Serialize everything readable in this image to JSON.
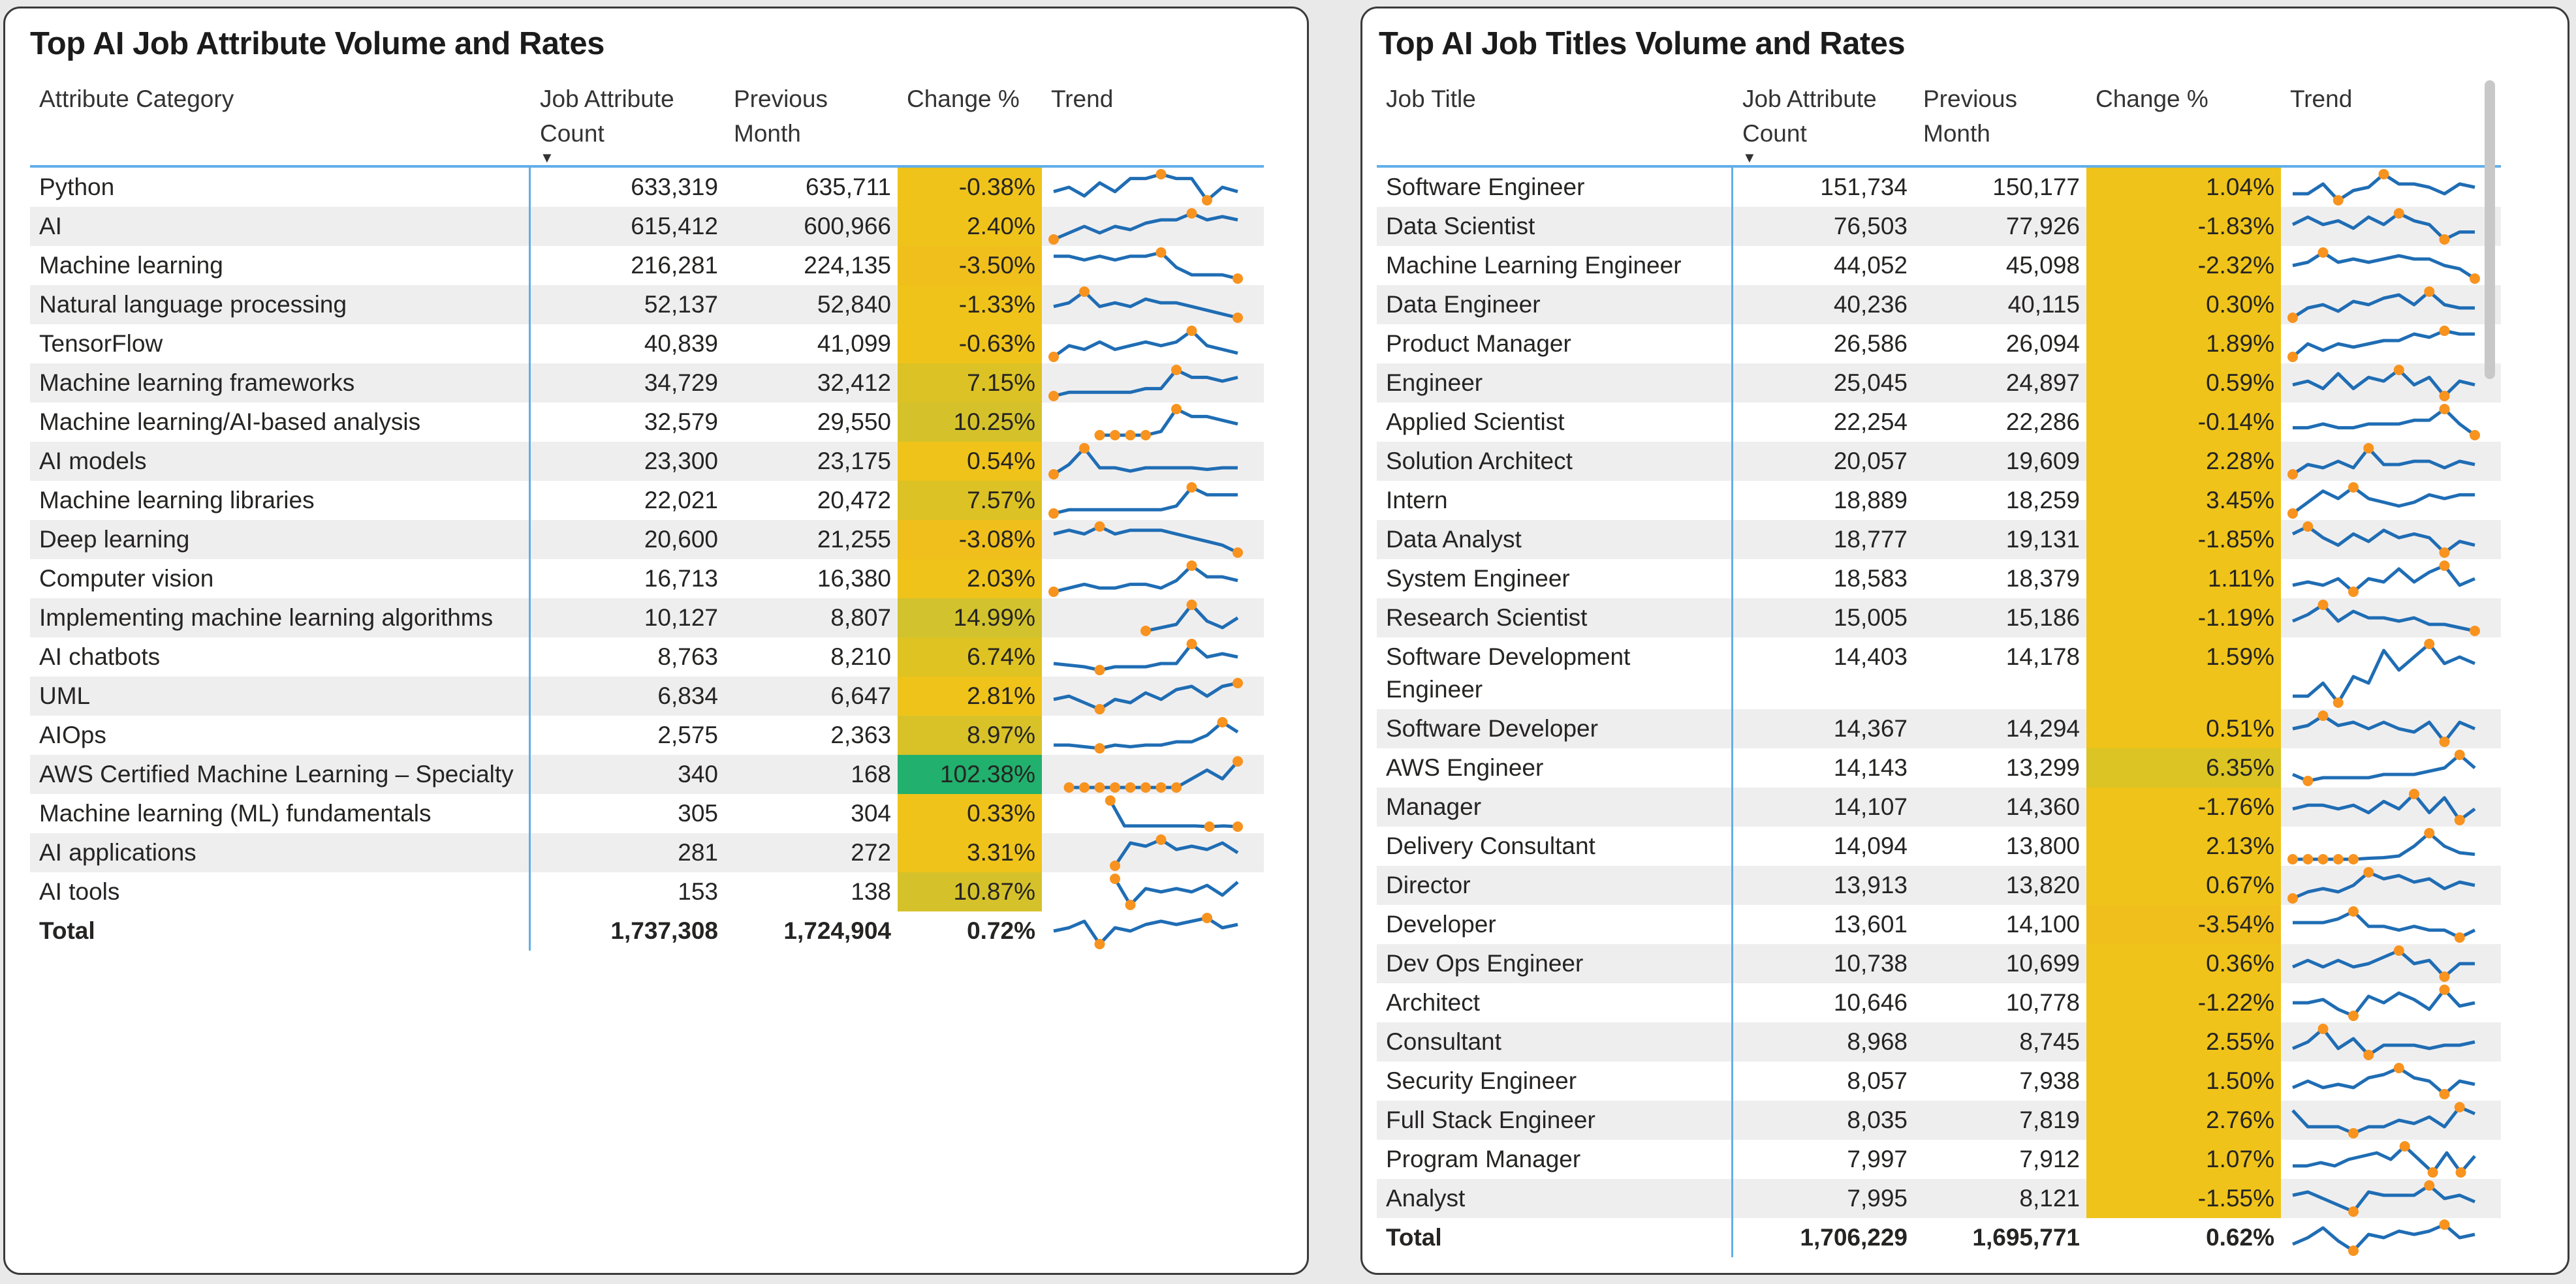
{
  "colors": {
    "line": "#1f6db4",
    "marker": "#f7931e",
    "header_rule": "#62aee9",
    "green": "#21b06d",
    "yellow": "#efc31a",
    "olive": "#d5c22b"
  },
  "left": {
    "title": "Top AI Job Attribute Volume and Rates",
    "headers": {
      "name": "Attribute Category",
      "count_1": "Job Attribute",
      "count_2": "Count",
      "sort": "▼",
      "prev_1": "Previous",
      "prev_2": "Month",
      "change": "Change %",
      "trend": "Trend"
    },
    "rows": [
      {
        "name": "Python",
        "count": "633,319",
        "prev": "635,711",
        "change": "-0.38%",
        "color": "#efc31a",
        "trend": [
          5,
          6,
          4,
          7,
          5,
          8,
          8,
          9,
          8,
          8,
          3,
          6,
          5
        ]
      },
      {
        "name": "AI",
        "count": "615,412",
        "prev": "600,966",
        "change": "2.40%",
        "color": "#efc31a",
        "trend": [
          1,
          3,
          5,
          3,
          5,
          4,
          6,
          7,
          7,
          9,
          7,
          8,
          7
        ]
      },
      {
        "name": "Machine learning",
        "count": "216,281",
        "prev": "224,135",
        "change": "-3.50%",
        "color": "#f0bf1b",
        "trend": [
          8,
          8,
          7,
          8,
          7,
          8,
          8,
          9,
          5,
          3,
          3,
          3,
          2
        ]
      },
      {
        "name": "Natural language processing",
        "count": "52,137",
        "prev": "52,840",
        "change": "-1.33%",
        "color": "#efc31a",
        "trend": [
          5,
          6,
          9,
          5,
          6,
          5,
          7,
          6,
          6,
          5,
          4,
          3,
          2
        ]
      },
      {
        "name": "TensorFlow",
        "count": "40,839",
        "prev": "41,099",
        "change": "-0.63%",
        "color": "#efc31a",
        "trend": [
          2,
          5,
          4,
          6,
          4,
          5,
          6,
          5,
          6,
          9,
          5,
          4,
          3
        ]
      },
      {
        "name": "Machine learning frameworks",
        "count": "34,729",
        "prev": "32,412",
        "change": "7.15%",
        "color": "#dcc224",
        "trend": [
          1,
          2,
          2,
          2,
          2,
          2,
          3,
          3,
          8,
          6,
          6,
          5,
          6
        ]
      },
      {
        "name": "Machine learning/AI-based analysis",
        "count": "32,579",
        "prev": "29,550",
        "change": "10.25%",
        "color": "#d5c22b",
        "trend": [
          null,
          null,
          null,
          1,
          1,
          1,
          1,
          2,
          8,
          6,
          6,
          5,
          4
        ]
      },
      {
        "name": "AI models",
        "count": "23,300",
        "prev": "23,175",
        "change": "0.54%",
        "color": "#efc31a",
        "trend": [
          1,
          4,
          9,
          3,
          3,
          2,
          3,
          3,
          3,
          3,
          2.5,
          3,
          3
        ]
      },
      {
        "name": "Machine learning libraries",
        "count": "22,021",
        "prev": "20,472",
        "change": "7.57%",
        "color": "#dcc224",
        "trend": [
          1,
          2,
          2,
          2,
          2,
          2,
          2,
          2,
          3,
          8,
          6,
          6,
          6
        ]
      },
      {
        "name": "Deep learning",
        "count": "20,600",
        "prev": "21,255",
        "change": "-3.08%",
        "color": "#f0bf1b",
        "trend": [
          7,
          8,
          7,
          9,
          7,
          8,
          8,
          8,
          7,
          6,
          5,
          4,
          2
        ]
      },
      {
        "name": "Computer vision",
        "count": "16,713",
        "prev": "16,380",
        "change": "2.03%",
        "color": "#efc31a",
        "trend": [
          2,
          3,
          4,
          3,
          3,
          4,
          4,
          3,
          5,
          9,
          6,
          6,
          5
        ]
      },
      {
        "name": "Implementing machine learning algorithms",
        "count": "10,127",
        "prev": "8,807",
        "change": "14.99%",
        "color": "#d2c22e",
        "trend": [
          null,
          null,
          null,
          null,
          null,
          null,
          1,
          2,
          3,
          9,
          4,
          2,
          5
        ]
      },
      {
        "name": "AI chatbots",
        "count": "8,763",
        "prev": "8,210",
        "change": "6.74%",
        "color": "#dec322",
        "trend": [
          3,
          2.5,
          2,
          1,
          2,
          2,
          2,
          3,
          3,
          9,
          5,
          6,
          5
        ]
      },
      {
        "name": "UML",
        "count": "6,834",
        "prev": "6,647",
        "change": "2.81%",
        "color": "#efc31a",
        "trend": [
          4,
          5,
          3,
          1,
          4,
          3,
          6,
          4,
          7,
          8,
          5,
          8,
          9
        ]
      },
      {
        "name": "AIOps",
        "count": "2,575",
        "prev": "2,363",
        "change": "8.97%",
        "color": "#d8c228",
        "trend": [
          2,
          2,
          1.5,
          1,
          2,
          1.5,
          2,
          2,
          3,
          3,
          5,
          9,
          6
        ]
      },
      {
        "name": "AWS Certified Machine Learning – Specialty",
        "count": "340",
        "prev": "168",
        "change": "102.38%",
        "color": "#21b06d",
        "trend": [
          null,
          1,
          1,
          1,
          1,
          1,
          1,
          1,
          1,
          4,
          7,
          4,
          10
        ]
      },
      {
        "name": "Machine learning (ML) fundamentals",
        "count": "305",
        "prev": "304",
        "change": "0.33%",
        "color": "#efc31a",
        "trend": [
          null,
          null,
          null,
          null,
          10,
          3,
          3,
          3,
          3,
          3,
          3,
          2.8,
          3,
          2.8
        ]
      },
      {
        "name": "AI applications",
        "count": "281",
        "prev": "272",
        "change": "3.31%",
        "color": "#efc31a",
        "trend": [
          null,
          null,
          null,
          null,
          1,
          8,
          7,
          9,
          6,
          7,
          6,
          8,
          5
        ]
      },
      {
        "name": "AI tools",
        "count": "153",
        "prev": "138",
        "change": "10.87%",
        "color": "#d5c22b",
        "trend": [
          null,
          null,
          null,
          null,
          9,
          1,
          6,
          5,
          6,
          5,
          7,
          4,
          8
        ]
      }
    ],
    "total": {
      "name": "Total",
      "count": "1,737,308",
      "prev": "1,724,904",
      "change": "0.72%",
      "trend": [
        5,
        6,
        8,
        1,
        6,
        5,
        7,
        8,
        7,
        8,
        9,
        6,
        7
      ]
    }
  },
  "right": {
    "title": "Top AI Job Titles Volume and Rates",
    "headers": {
      "name": "Job Title",
      "count_1": "Job Attribute",
      "count_2": "Count",
      "sort": "▼",
      "prev_1": "Previous",
      "prev_2": "Month",
      "change": "Change %",
      "trend": "Trend"
    },
    "rows": [
      {
        "name": "Software Engineer",
        "count": "151,734",
        "prev": "150,177",
        "change": "1.04%",
        "color": "#efc31a",
        "trend": [
          3,
          3,
          6,
          1,
          4,
          5,
          9,
          6,
          6,
          5,
          3,
          6,
          5
        ]
      },
      {
        "name": "Data Scientist",
        "count": "76,503",
        "prev": "77,926",
        "change": "-1.83%",
        "color": "#efc31a",
        "trend": [
          5,
          7,
          5,
          6,
          4,
          7,
          5,
          8,
          6,
          5,
          1,
          3,
          3
        ]
      },
      {
        "name": "Machine Learning Engineer",
        "count": "44,052",
        "prev": "45,098",
        "change": "-2.32%",
        "color": "#efc31a",
        "trend": [
          5,
          6,
          9,
          6,
          7,
          6,
          7,
          8,
          7,
          7,
          5,
          4,
          1
        ]
      },
      {
        "name": "Data Engineer",
        "count": "40,236",
        "prev": "40,115",
        "change": "0.30%",
        "color": "#efc31a",
        "trend": [
          1,
          4,
          5,
          3,
          6,
          5,
          7,
          8,
          5,
          9,
          5,
          4,
          4
        ]
      },
      {
        "name": "Product Manager",
        "count": "26,586",
        "prev": "26,094",
        "change": "1.89%",
        "color": "#efc31a",
        "trend": [
          1,
          5,
          3,
          5,
          4,
          5,
          6,
          6,
          8,
          7,
          9,
          8,
          8
        ]
      },
      {
        "name": "Engineer",
        "count": "25,045",
        "prev": "24,897",
        "change": "0.59%",
        "color": "#efc31a",
        "trend": [
          5,
          6,
          4,
          8,
          4,
          7,
          6,
          9,
          5,
          7,
          2,
          6,
          5
        ]
      },
      {
        "name": "Applied Scientist",
        "count": "22,254",
        "prev": "22,286",
        "change": "-0.14%",
        "color": "#efc31a",
        "trend": [
          4,
          4,
          5,
          4,
          4,
          5,
          5,
          5,
          6,
          6,
          9,
          5,
          2
        ]
      },
      {
        "name": "Solution Architect",
        "count": "20,057",
        "prev": "19,609",
        "change": "2.28%",
        "color": "#efc31a",
        "trend": [
          1,
          4,
          3,
          5,
          3,
          9,
          4,
          4,
          5,
          5,
          3,
          5,
          4
        ]
      },
      {
        "name": "Intern",
        "count": "18,889",
        "prev": "18,259",
        "change": "3.45%",
        "color": "#efc31a",
        "trend": [
          1,
          4,
          7,
          5,
          8,
          5,
          4,
          3,
          4,
          6,
          5,
          6,
          6
        ]
      },
      {
        "name": "Data Analyst",
        "count": "18,777",
        "prev": "19,131",
        "change": "-1.85%",
        "color": "#efc31a",
        "trend": [
          6,
          8,
          5,
          3,
          6,
          4,
          7,
          5,
          6,
          5,
          1,
          4,
          3
        ]
      },
      {
        "name": "System Engineer",
        "count": "18,583",
        "prev": "18,379",
        "change": "1.11%",
        "color": "#efc31a",
        "trend": [
          3,
          4,
          3,
          5,
          1,
          5,
          4,
          8,
          4,
          7,
          9,
          3,
          5
        ]
      },
      {
        "name": "Research Scientist",
        "count": "15,005",
        "prev": "15,186",
        "change": "-1.19%",
        "color": "#efc31a",
        "trend": [
          4,
          6,
          9,
          4,
          7,
          5,
          5,
          4,
          5,
          3,
          3,
          2,
          1
        ]
      },
      {
        "name": "Software Development Engineer",
        "count": "14,403",
        "prev": "14,178",
        "change": "1.59%",
        "color": "#efc31a",
        "trend": [
          2,
          2,
          4,
          1,
          5,
          4,
          9,
          6,
          8,
          10,
          7,
          8,
          7
        ]
      },
      {
        "name": "Software Developer",
        "count": "14,367",
        "prev": "14,294",
        "change": "0.51%",
        "color": "#efc31a",
        "trend": [
          5,
          6,
          9,
          6,
          7,
          5,
          7,
          5,
          4,
          7,
          1,
          7,
          5
        ]
      },
      {
        "name": "AWS Engineer",
        "count": "14,143",
        "prev": "13,299",
        "change": "6.35%",
        "color": "#dbc424",
        "trend": [
          3,
          1,
          2,
          2,
          2,
          2,
          3,
          3,
          3,
          4,
          5,
          9,
          5
        ]
      },
      {
        "name": "Manager",
        "count": "14,107",
        "prev": "14,360",
        "change": "-1.76%",
        "color": "#efc31a",
        "trend": [
          4,
          5,
          5,
          4,
          5,
          3,
          6,
          4,
          8,
          3,
          7,
          1,
          4
        ]
      },
      {
        "name": "Delivery Consultant",
        "count": "14,094",
        "prev": "13,800",
        "change": "2.13%",
        "color": "#efc31a",
        "trend": [
          1,
          1,
          1,
          1,
          1,
          1.3,
          1.5,
          2,
          5,
          9,
          5,
          3,
          2.5
        ]
      },
      {
        "name": "Director",
        "count": "13,913",
        "prev": "13,820",
        "change": "0.67%",
        "color": "#efc31a",
        "trend": [
          1,
          3,
          4,
          3,
          5,
          9,
          7,
          8,
          6,
          7,
          4,
          6,
          5
        ]
      },
      {
        "name": "Developer",
        "count": "13,601",
        "prev": "14,100",
        "change": "-3.54%",
        "color": "#f0bf1b",
        "trend": [
          6,
          6,
          6,
          7,
          9,
          5,
          5,
          4,
          5,
          4,
          4,
          2,
          4
        ]
      },
      {
        "name": "Dev Ops Engineer",
        "count": "10,738",
        "prev": "10,699",
        "change": "0.36%",
        "color": "#efc31a",
        "trend": [
          4,
          6,
          4,
          6,
          4,
          5,
          7,
          9,
          5,
          6,
          1,
          5,
          5
        ]
      },
      {
        "name": "Architect",
        "count": "10,646",
        "prev": "10,778",
        "change": "-1.22%",
        "color": "#efc31a",
        "trend": [
          5,
          5,
          6,
          3,
          1,
          7,
          5,
          8,
          6,
          3,
          9,
          4,
          5
        ]
      },
      {
        "name": "Consultant",
        "count": "8,968",
        "prev": "8,745",
        "change": "2.55%",
        "color": "#efc31a",
        "trend": [
          3,
          5,
          9,
          3,
          6,
          1,
          4,
          4,
          4,
          3,
          4,
          4,
          5
        ]
      },
      {
        "name": "Security Engineer",
        "count": "8,057",
        "prev": "7,938",
        "change": "1.50%",
        "color": "#efc31a",
        "trend": [
          3,
          5,
          3,
          4,
          3,
          6,
          7,
          9,
          6,
          5,
          1,
          5,
          4
        ]
      },
      {
        "name": "Full Stack Engineer",
        "count": "8,035",
        "prev": "7,819",
        "change": "2.76%",
        "color": "#efc31a",
        "trend": [
          8,
          3,
          3,
          3,
          1,
          3,
          3,
          5,
          4,
          6,
          3,
          9,
          7
        ]
      },
      {
        "name": "Program Manager",
        "count": "7,997",
        "prev": "7,912",
        "change": "1.07%",
        "color": "#efc31a",
        "trend": [
          3,
          3,
          4,
          3,
          5,
          6,
          7,
          5,
          9,
          5,
          1,
          7,
          1,
          6
        ]
      },
      {
        "name": "Analyst",
        "count": "7,995",
        "prev": "8,121",
        "change": "-1.55%",
        "color": "#efc31a",
        "trend": [
          6,
          7,
          5,
          3,
          1,
          7,
          6,
          6,
          6,
          9,
          5,
          6,
          4
        ]
      }
    ],
    "total": {
      "name": "Total",
      "count": "1,706,229",
      "prev": "1,695,771",
      "change": "0.62%",
      "trend": [
        3,
        5,
        8,
        4,
        1,
        6,
        5,
        7,
        6,
        7,
        9,
        5,
        6
      ]
    }
  }
}
